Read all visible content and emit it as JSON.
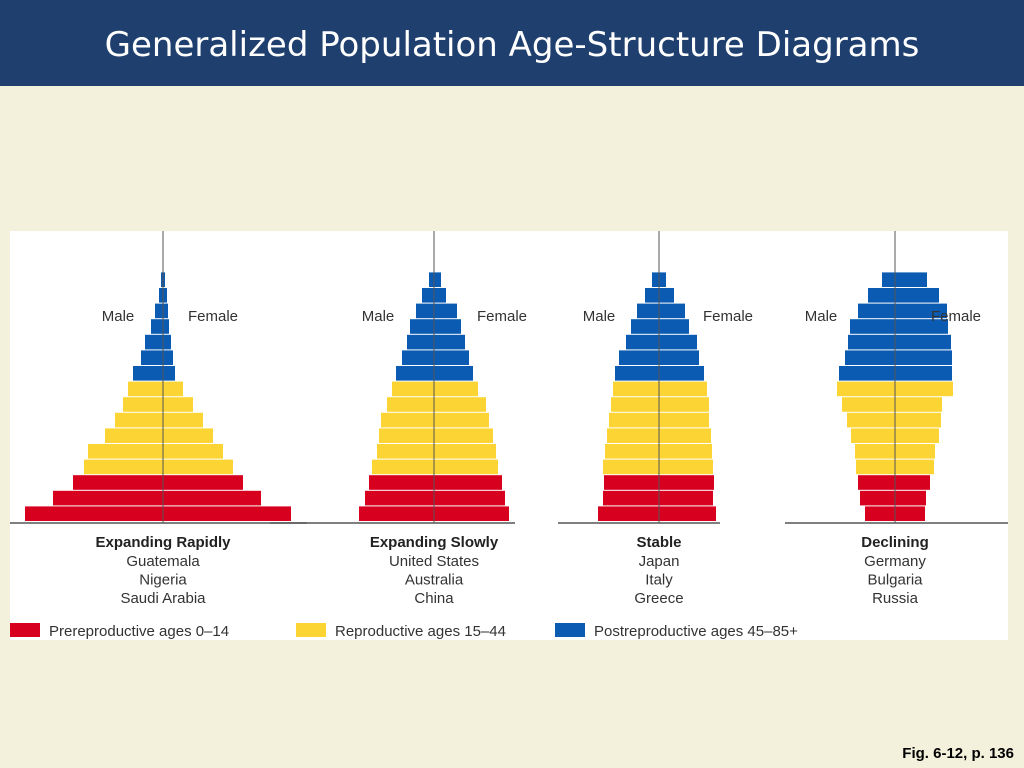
{
  "slide": {
    "title": "Generalized Population Age-Structure Diagrams",
    "caption": "Fig. 6-12, p. 136"
  },
  "colors": {
    "prereproductive": "#d7001e",
    "reproductive": "#fcd534",
    "postreproductive": "#0a5bb1",
    "title_bar": "#1f3f6e",
    "background": "#f3f0dc"
  },
  "chart_data": {
    "type": "bar",
    "subtype": "population-pyramid",
    "age_classes": 16,
    "legend": [
      {
        "group": "prereproductive",
        "label": "Prereproductive ages 0–14"
      },
      {
        "group": "reproductive",
        "label": "Reproductive ages 15–44"
      },
      {
        "group": "postreproductive",
        "label": "Postreproductive ages 45–85+"
      }
    ],
    "side_labels": {
      "left": "Male",
      "right": "Female"
    },
    "pyramids": [
      {
        "title": "Expanding Rapidly",
        "countries": [
          "Guatemala",
          "Nigeria",
          "Saudi Arabia"
        ],
        "male": [
          138,
          110,
          90,
          79,
          75,
          58,
          48,
          40,
          35,
          30,
          22,
          18,
          12,
          8,
          4,
          2
        ],
        "female": [
          128,
          98,
          80,
          70,
          60,
          50,
          40,
          30,
          20,
          12,
          10,
          8,
          6,
          5,
          4,
          2
        ]
      },
      {
        "title": "Expanding Slowly",
        "countries": [
          "United States",
          "Australia",
          "China"
        ],
        "male": [
          75,
          69,
          65,
          62,
          57,
          55,
          53,
          47,
          42,
          38,
          32,
          27,
          24,
          18,
          12,
          5
        ],
        "female": [
          75,
          71,
          68,
          64,
          62,
          59,
          55,
          52,
          44,
          39,
          35,
          31,
          27,
          23,
          12,
          7
        ]
      },
      {
        "title": "Stable",
        "countries": [
          "Japan",
          "Italy",
          "Greece"
        ],
        "male": [
          61,
          56,
          55,
          56,
          54,
          52,
          50,
          48,
          46,
          44,
          40,
          33,
          28,
          22,
          14,
          7
        ],
        "female": [
          57,
          54,
          55,
          54,
          53,
          52,
          50,
          50,
          48,
          45,
          40,
          38,
          30,
          26,
          15,
          7
        ]
      },
      {
        "title": "Declining",
        "countries": [
          "Germany",
          "Bulgaria",
          "Russia"
        ],
        "male": [
          30,
          35,
          37,
          39,
          40,
          44,
          48,
          53,
          58,
          56,
          50,
          47,
          45,
          37,
          27,
          13
        ],
        "female": [
          30,
          31,
          35,
          39,
          40,
          44,
          46,
          47,
          58,
          57,
          57,
          56,
          53,
          52,
          44,
          32
        ]
      }
    ]
  }
}
